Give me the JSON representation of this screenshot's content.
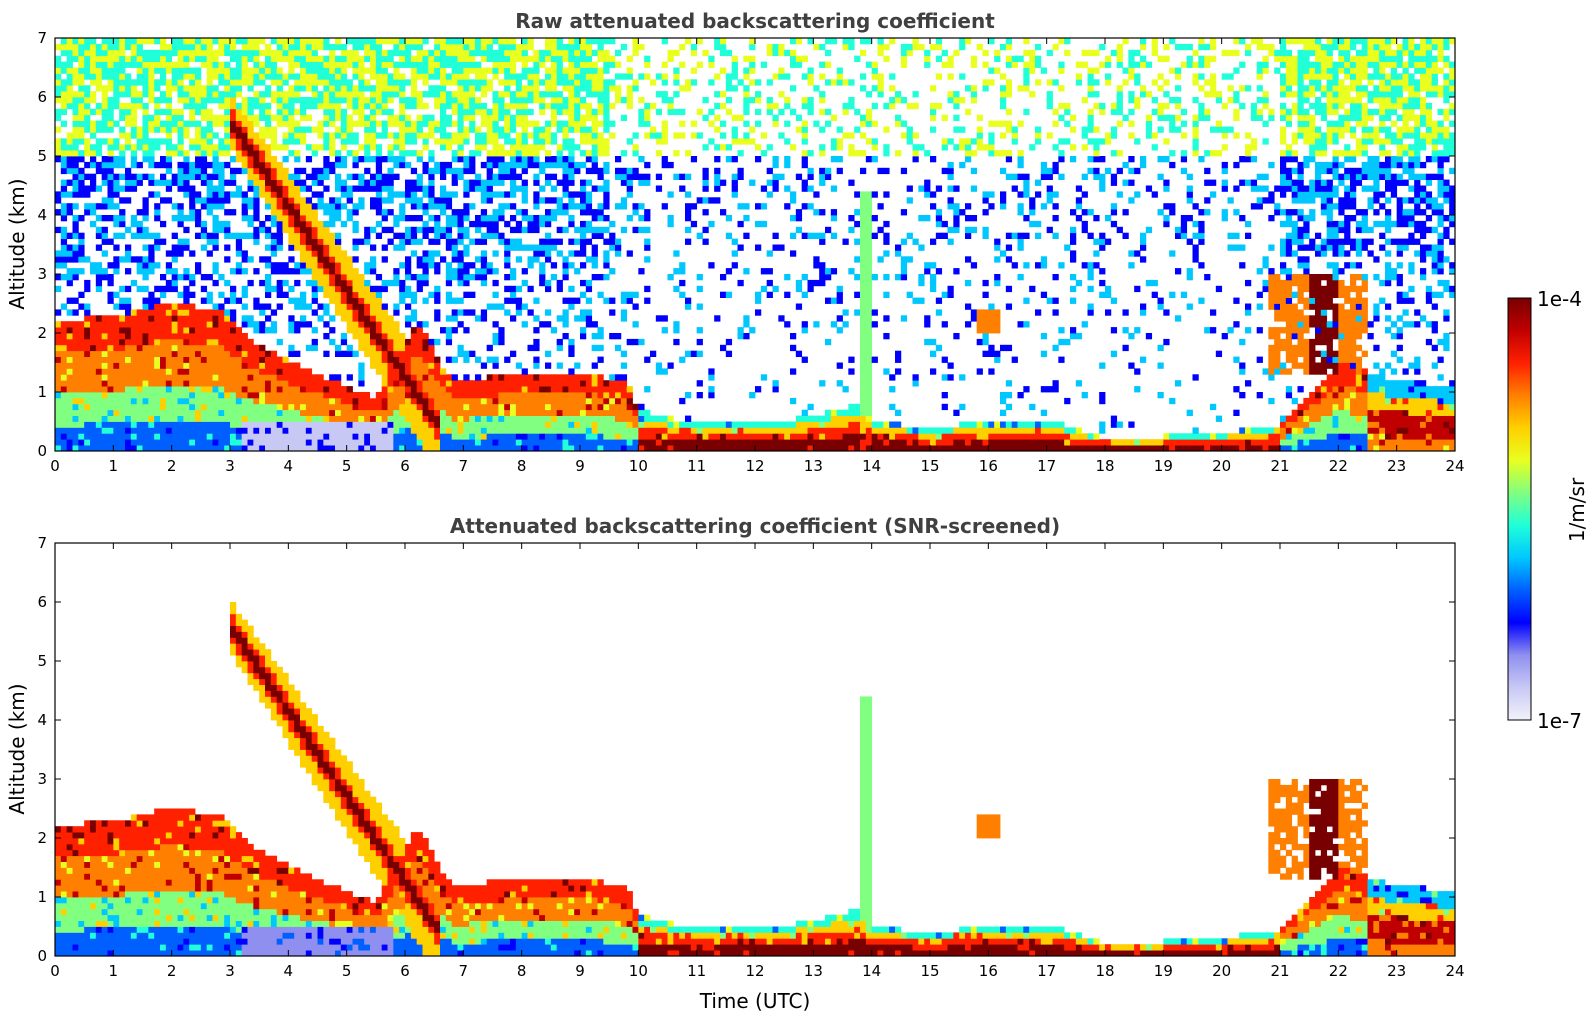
{
  "chart_data": [
    {
      "type": "heatmap",
      "title": "Raw attenuated backscattering coefficient",
      "xlabel": "",
      "ylabel": "Altitude (km)",
      "xlim": [
        0,
        24
      ],
      "ylim": [
        0,
        7
      ],
      "xticks": [
        "0",
        "1",
        "2",
        "3",
        "4",
        "5",
        "6",
        "7",
        "8",
        "9",
        "10",
        "11",
        "12",
        "13",
        "14",
        "15",
        "16",
        "17",
        "18",
        "19",
        "20",
        "21",
        "22",
        "23",
        "24"
      ],
      "yticks": [
        "0",
        "1",
        "2",
        "3",
        "4",
        "5",
        "6",
        "7"
      ],
      "screened": false,
      "features": {
        "boundary_layer_top_km": [
          [
            0,
            2.2
          ],
          [
            1,
            2.3
          ],
          [
            2,
            2.5
          ],
          [
            2.8,
            2.4
          ],
          [
            3.5,
            1.8
          ],
          [
            4.5,
            1.3
          ],
          [
            5.5,
            0.9
          ],
          [
            6.2,
            2.2
          ],
          [
            6.8,
            1.2
          ],
          [
            8,
            1.3
          ],
          [
            9,
            1.3
          ],
          [
            9.8,
            1.2
          ],
          [
            10,
            0.7
          ],
          [
            11,
            0.45
          ],
          [
            12,
            0.45
          ],
          [
            13,
            0.6
          ],
          [
            13.8,
            0.8
          ],
          [
            14,
            0.5
          ],
          [
            15,
            0.4
          ],
          [
            16,
            0.5
          ],
          [
            17,
            0.55
          ],
          [
            18,
            0.2
          ],
          [
            19,
            0.25
          ],
          [
            20,
            0.3
          ],
          [
            21,
            0.45
          ],
          [
            22,
            1.5
          ],
          [
            23,
            1.2
          ],
          [
            24,
            1.1
          ]
        ],
        "aerosol_plume": {
          "start": {
            "time": 3.0,
            "altitude_km": 5.6
          },
          "end": {
            "time": 6.6,
            "altitude_km": 0.4
          }
        },
        "spike": {
          "time": 13.9,
          "altitude_km": [
            0,
            4.4
          ]
        },
        "isolated_layer": {
          "time": 16.0,
          "altitude_km": 2.2
        },
        "evening_layer": {
          "time": [
            20.8,
            22.5
          ],
          "altitude_km": [
            1.3,
            3.0
          ]
        }
      }
    },
    {
      "type": "heatmap",
      "title": "Attenuated backscattering coefficient (SNR-screened)",
      "xlabel": "Time (UTC)",
      "ylabel": "Altitude (km)",
      "xlim": [
        0,
        24
      ],
      "ylim": [
        0,
        7
      ],
      "xticks": [
        "0",
        "1",
        "2",
        "3",
        "4",
        "5",
        "6",
        "7",
        "8",
        "9",
        "10",
        "11",
        "12",
        "13",
        "14",
        "15",
        "16",
        "17",
        "18",
        "19",
        "20",
        "21",
        "22",
        "23",
        "24"
      ],
      "yticks": [
        "0",
        "1",
        "2",
        "3",
        "4",
        "5",
        "6",
        "7"
      ],
      "screened": true
    }
  ],
  "colorbar": {
    "label": "1/m/sr",
    "max_label": "1e-4",
    "min_label": "1e-7",
    "colors": [
      "#f2f2fb",
      "#c8c8f5",
      "#8f8ff0",
      "#0000ff",
      "#0060ff",
      "#00c8ff",
      "#20ffd8",
      "#80ff80",
      "#e8ff20",
      "#ffd000",
      "#ff8000",
      "#ff2000",
      "#c00000",
      "#780000"
    ]
  }
}
